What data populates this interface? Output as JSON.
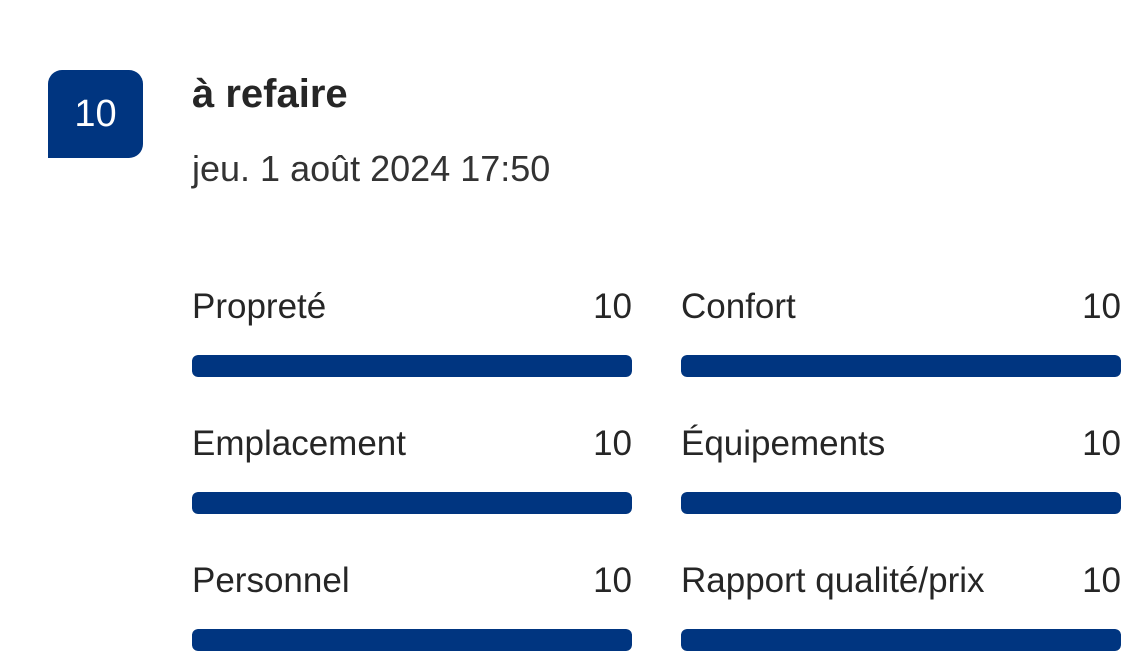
{
  "review": {
    "score": "10",
    "title": "à refaire",
    "date": "jeu. 1 août 2024 17:50",
    "accent_color": "#003580",
    "categories": [
      {
        "label": "Propreté",
        "value": "10",
        "max": 10
      },
      {
        "label": "Confort",
        "value": "10",
        "max": 10
      },
      {
        "label": "Emplacement",
        "value": "10",
        "max": 10
      },
      {
        "label": "Équipements",
        "value": "10",
        "max": 10
      },
      {
        "label": "Personnel",
        "value": "10",
        "max": 10
      },
      {
        "label": "Rapport qualité/prix",
        "value": "10",
        "max": 10
      }
    ]
  }
}
